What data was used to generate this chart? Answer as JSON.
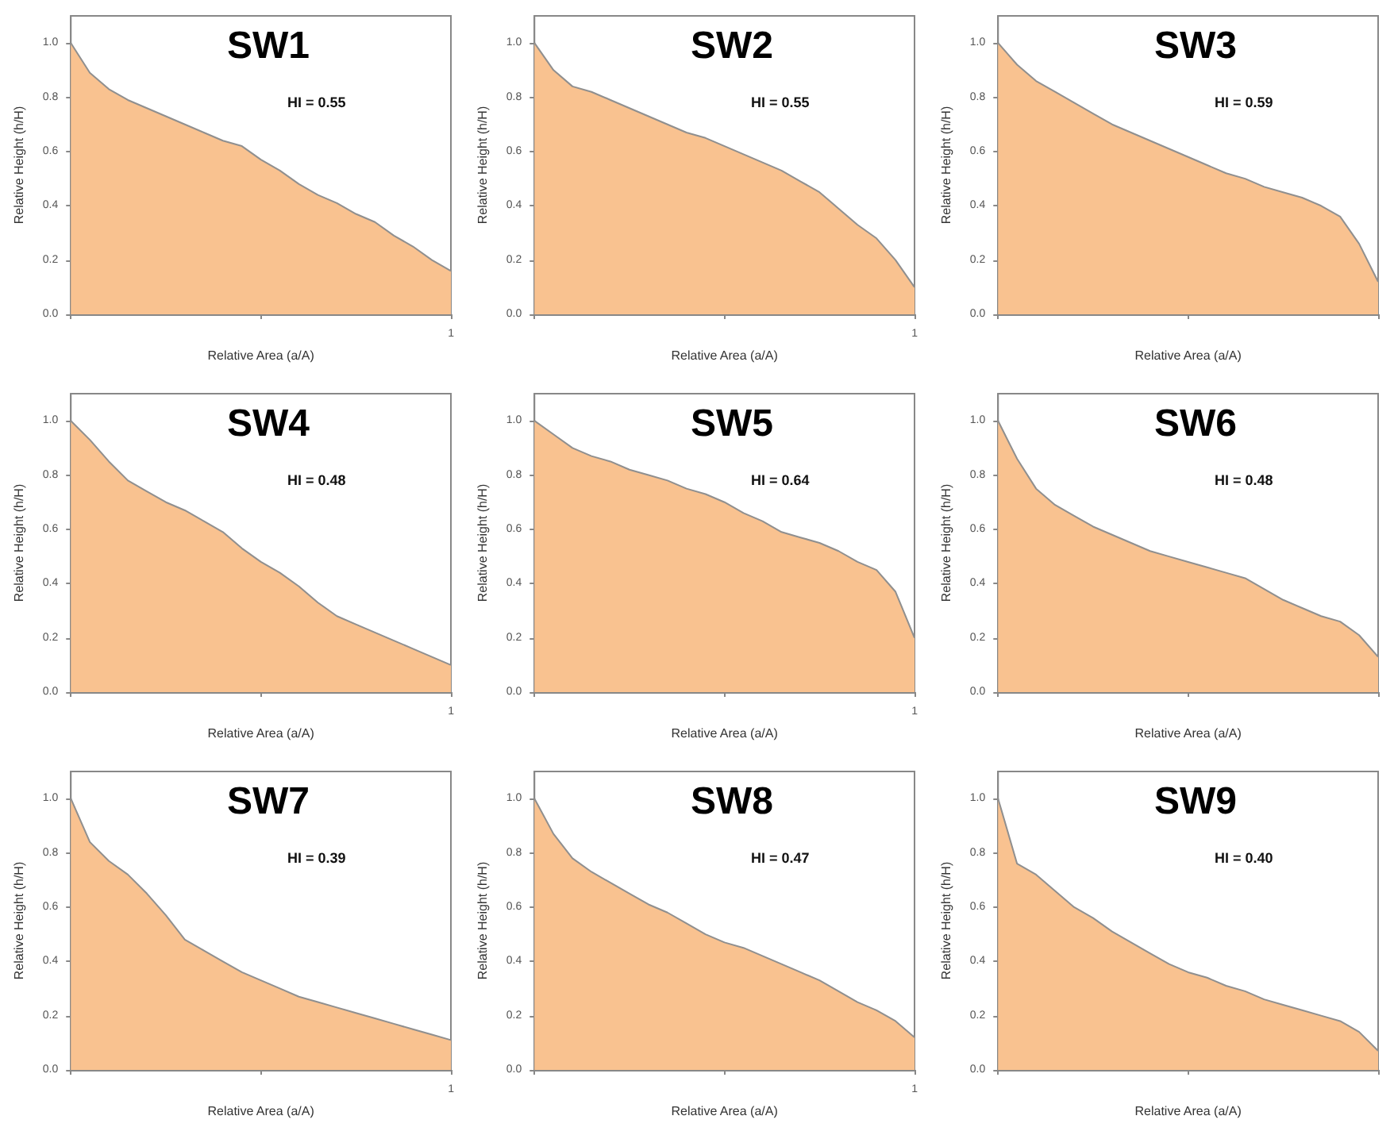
{
  "chart_data": [
    {
      "type": "area",
      "title": "SW1",
      "xlabel": "Relative Area (a/A)",
      "ylabel": "Relative Height (h/H)",
      "annotations": [
        "HI = 0.55",
        "1"
      ],
      "ylim": [
        0,
        1.1
      ],
      "yticks": [
        {
          "value": 0,
          "label": "0.0"
        },
        {
          "value": 0.2,
          "label": "0.2"
        },
        {
          "value": 0.4,
          "label": "0.4"
        },
        {
          "value": 0.6,
          "label": "0.6"
        },
        {
          "value": 0.8,
          "label": "0.8"
        },
        {
          "value": 1,
          "label": "1.0"
        }
      ],
      "categories": [
        null,
        null,
        null,
        null,
        null,
        null,
        null,
        null,
        null,
        null,
        null,
        null,
        null,
        null,
        null,
        null,
        null,
        null,
        null,
        null,
        null
      ],
      "series": [
        {
          "color": "#f9c290",
          "values": [
            1,
            0.89,
            0.83,
            0.79,
            0.76,
            0.73,
            0.7,
            0.67,
            0.64,
            0.62,
            0.57,
            0.53,
            0.48,
            0.44,
            0.41,
            0.37,
            0.34,
            0.29,
            0.25,
            0.2,
            0.16
          ]
        }
      ]
    },
    {
      "type": "area",
      "title": "SW2",
      "xlabel": "Relative Area (a/A)",
      "ylabel": "Relative Height (h/H)",
      "annotations": [
        "HI = 0.55",
        "1"
      ],
      "ylim": [
        0,
        1.1
      ],
      "yticks": [
        {
          "value": 0,
          "label": "0.0"
        },
        {
          "value": 0.2,
          "label": "0.2"
        },
        {
          "value": 0.4,
          "label": "0.4"
        },
        {
          "value": 0.6,
          "label": "0.6"
        },
        {
          "value": 0.8,
          "label": "0.8"
        },
        {
          "value": 1,
          "label": "1.0"
        }
      ],
      "categories": [
        null,
        null,
        null,
        null,
        null,
        null,
        null,
        null,
        null,
        null,
        null,
        null,
        null,
        null,
        null,
        null,
        null,
        null,
        null,
        null,
        null
      ],
      "series": [
        {
          "color": "#f9c290",
          "values": [
            1,
            0.9,
            0.84,
            0.82,
            0.79,
            0.76,
            0.73,
            0.7,
            0.67,
            0.65,
            0.62,
            0.59,
            0.56,
            0.53,
            0.49,
            0.45,
            0.39,
            0.33,
            0.28,
            0.2,
            0.1
          ]
        }
      ]
    },
    {
      "type": "area",
      "title": "SW3",
      "xlabel": "Relative Area (a/A)",
      "ylabel": "Relative Height (h/H)",
      "annotations": [
        "HI = 0.59"
      ],
      "ylim": [
        0,
        1.1
      ],
      "yticks": [
        {
          "value": 0,
          "label": "0.0"
        },
        {
          "value": 0.2,
          "label": "0.2"
        },
        {
          "value": 0.4,
          "label": "0.4"
        },
        {
          "value": 0.6,
          "label": "0.6"
        },
        {
          "value": 0.8,
          "label": "0.8"
        },
        {
          "value": 1,
          "label": "1.0"
        }
      ],
      "categories": [
        null,
        null,
        null,
        null,
        null,
        null,
        null,
        null,
        null,
        null,
        null,
        null,
        null,
        null,
        null,
        null,
        null,
        null,
        null,
        null,
        null
      ],
      "series": [
        {
          "color": "#f9c290",
          "values": [
            1,
            0.92,
            0.86,
            0.82,
            0.78,
            0.74,
            0.7,
            0.67,
            0.64,
            0.61,
            0.58,
            0.55,
            0.52,
            0.5,
            0.47,
            0.45,
            0.43,
            0.4,
            0.36,
            0.26,
            0.12
          ]
        }
      ]
    },
    {
      "type": "area",
      "title": "SW4",
      "xlabel": "Relative Area (a/A)",
      "ylabel": "Relative Height (h/H)",
      "annotations": [
        "HI = 0.48",
        "1"
      ],
      "ylim": [
        0,
        1.1
      ],
      "yticks": [
        {
          "value": 0,
          "label": "0.0"
        },
        {
          "value": 0.2,
          "label": "0.2"
        },
        {
          "value": 0.4,
          "label": "0.4"
        },
        {
          "value": 0.6,
          "label": "0.6"
        },
        {
          "value": 0.8,
          "label": "0.8"
        },
        {
          "value": 1,
          "label": "1.0"
        }
      ],
      "categories": [
        null,
        null,
        null,
        null,
        null,
        null,
        null,
        null,
        null,
        null,
        null,
        null,
        null,
        null,
        null,
        null,
        null,
        null,
        null,
        null,
        null
      ],
      "series": [
        {
          "color": "#f9c290",
          "values": [
            1,
            0.93,
            0.85,
            0.78,
            0.74,
            0.7,
            0.67,
            0.63,
            0.59,
            0.53,
            0.48,
            0.44,
            0.39,
            0.33,
            0.28,
            0.25,
            0.22,
            0.19,
            0.16,
            0.13,
            0.1
          ]
        }
      ]
    },
    {
      "type": "area",
      "title": "SW5",
      "xlabel": "Relative Area (a/A)",
      "ylabel": "Relative Height (h/H)",
      "annotations": [
        "HI = 0.64",
        "1"
      ],
      "ylim": [
        0,
        1.1
      ],
      "yticks": [
        {
          "value": 0,
          "label": "0.0"
        },
        {
          "value": 0.2,
          "label": "0.2"
        },
        {
          "value": 0.4,
          "label": "0.4"
        },
        {
          "value": 0.6,
          "label": "0.6"
        },
        {
          "value": 0.8,
          "label": "0.8"
        },
        {
          "value": 1,
          "label": "1.0"
        }
      ],
      "categories": [
        null,
        null,
        null,
        null,
        null,
        null,
        null,
        null,
        null,
        null,
        null,
        null,
        null,
        null,
        null,
        null,
        null,
        null,
        null,
        null,
        null
      ],
      "series": [
        {
          "color": "#f9c290",
          "values": [
            1,
            0.95,
            0.9,
            0.87,
            0.85,
            0.82,
            0.8,
            0.78,
            0.75,
            0.73,
            0.7,
            0.66,
            0.63,
            0.59,
            0.57,
            0.55,
            0.52,
            0.48,
            0.45,
            0.37,
            0.2
          ]
        }
      ]
    },
    {
      "type": "area",
      "title": "SW6",
      "xlabel": "Relative Area (a/A)",
      "ylabel": "Relative Height (h/H)",
      "annotations": [
        "HI = 0.48"
      ],
      "ylim": [
        0,
        1.1
      ],
      "yticks": [
        {
          "value": 0,
          "label": "0.0"
        },
        {
          "value": 0.2,
          "label": "0.2"
        },
        {
          "value": 0.4,
          "label": "0.4"
        },
        {
          "value": 0.6,
          "label": "0.6"
        },
        {
          "value": 0.8,
          "label": "0.8"
        },
        {
          "value": 1,
          "label": "1.0"
        }
      ],
      "categories": [
        null,
        null,
        null,
        null,
        null,
        null,
        null,
        null,
        null,
        null,
        null,
        null,
        null,
        null,
        null,
        null,
        null,
        null,
        null,
        null,
        null
      ],
      "series": [
        {
          "color": "#f9c290",
          "values": [
            1,
            0.86,
            0.75,
            0.69,
            0.65,
            0.61,
            0.58,
            0.55,
            0.52,
            0.5,
            0.48,
            0.46,
            0.44,
            0.42,
            0.38,
            0.34,
            0.31,
            0.28,
            0.26,
            0.21,
            0.13
          ]
        }
      ]
    },
    {
      "type": "area",
      "title": "SW7",
      "xlabel": "Relative Area (a/A)",
      "ylabel": "Relative Height (h/H)",
      "annotations": [
        "HI = 0.39",
        "1"
      ],
      "ylim": [
        0,
        1.1
      ],
      "yticks": [
        {
          "value": 0,
          "label": "0.0"
        },
        {
          "value": 0.2,
          "label": "0.2"
        },
        {
          "value": 0.4,
          "label": "0.4"
        },
        {
          "value": 0.6,
          "label": "0.6"
        },
        {
          "value": 0.8,
          "label": "0.8"
        },
        {
          "value": 1,
          "label": "1.0"
        }
      ],
      "categories": [
        null,
        null,
        null,
        null,
        null,
        null,
        null,
        null,
        null,
        null,
        null,
        null,
        null,
        null,
        null,
        null,
        null,
        null,
        null,
        null,
        null
      ],
      "series": [
        {
          "color": "#f9c290",
          "values": [
            1,
            0.84,
            0.77,
            0.72,
            0.65,
            0.57,
            0.48,
            0.44,
            0.4,
            0.36,
            0.33,
            0.3,
            0.27,
            0.25,
            0.23,
            0.21,
            0.19,
            0.17,
            0.15,
            0.13,
            0.11
          ]
        }
      ]
    },
    {
      "type": "area",
      "title": "SW8",
      "xlabel": "Relative Area (a/A)",
      "ylabel": "Relative Height (h/H)",
      "annotations": [
        "HI = 0.47",
        "1"
      ],
      "ylim": [
        0,
        1.1
      ],
      "yticks": [
        {
          "value": 0,
          "label": "0.0"
        },
        {
          "value": 0.2,
          "label": "0.2"
        },
        {
          "value": 0.4,
          "label": "0.4"
        },
        {
          "value": 0.6,
          "label": "0.6"
        },
        {
          "value": 0.8,
          "label": "0.8"
        },
        {
          "value": 1,
          "label": "1.0"
        }
      ],
      "categories": [
        null,
        null,
        null,
        null,
        null,
        null,
        null,
        null,
        null,
        null,
        null,
        null,
        null,
        null,
        null,
        null,
        null,
        null,
        null,
        null,
        null
      ],
      "series": [
        {
          "color": "#f9c290",
          "values": [
            1,
            0.87,
            0.78,
            0.73,
            0.69,
            0.65,
            0.61,
            0.58,
            0.54,
            0.5,
            0.47,
            0.45,
            0.42,
            0.39,
            0.36,
            0.33,
            0.29,
            0.25,
            0.22,
            0.18,
            0.12
          ]
        }
      ]
    },
    {
      "type": "area",
      "title": "SW9",
      "xlabel": "Relative Area (a/A)",
      "ylabel": "Relative Height (h/H)",
      "annotations": [
        "HI = 0.40"
      ],
      "ylim": [
        0,
        1.1
      ],
      "yticks": [
        {
          "value": 0,
          "label": "0.0"
        },
        {
          "value": 0.2,
          "label": "0.2"
        },
        {
          "value": 0.4,
          "label": "0.4"
        },
        {
          "value": 0.6,
          "label": "0.6"
        },
        {
          "value": 0.8,
          "label": "0.8"
        },
        {
          "value": 1,
          "label": "1.0"
        }
      ],
      "categories": [
        null,
        null,
        null,
        null,
        null,
        null,
        null,
        null,
        null,
        null,
        null,
        null,
        null,
        null,
        null,
        null,
        null,
        null,
        null,
        null,
        null
      ],
      "series": [
        {
          "color": "#f9c290",
          "values": [
            1,
            0.76,
            0.72,
            0.66,
            0.6,
            0.56,
            0.51,
            0.47,
            0.43,
            0.39,
            0.36,
            0.34,
            0.31,
            0.29,
            0.26,
            0.24,
            0.22,
            0.2,
            0.18,
            0.14,
            0.07
          ]
        }
      ]
    }
  ]
}
